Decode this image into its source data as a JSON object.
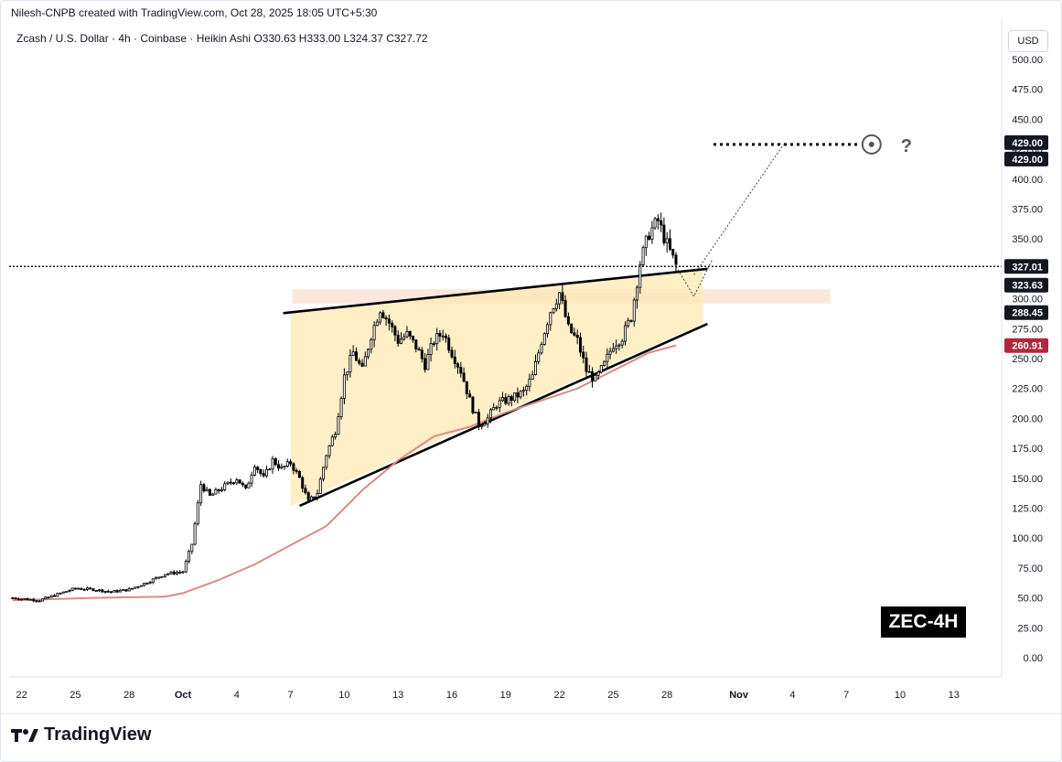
{
  "header": {
    "credit": "Nilesh-CNPB created with TradingView.com, Oct 28, 2025 18:05 UTC+5:30"
  },
  "symbol_line": "Zcash / U.S. Dollar · 4h · Coinbase · Heikin Ashi  O330.63  H333.00  L324.37  C327.72",
  "currency_button": "USD",
  "badge": "ZEC-4H",
  "branding": {
    "name": "TradingView",
    "icon": "tradingview-logo-icon"
  },
  "colors": {
    "candle_up": "#000000",
    "candle_down": "#000000",
    "ma_line": "#d98a87",
    "wedge_fill": "#fde9b4",
    "zone_fill": "#fbd7c6",
    "price_label_dark": "#131722",
    "ma_label": "#b2283b"
  },
  "chart_data": {
    "type": "candlestick",
    "title": "Zcash / U.S. Dollar · 4h · Coinbase · Heikin Ashi",
    "ylim": [
      -20,
      510
    ],
    "y_ticks": [
      0,
      25,
      50,
      75,
      100,
      125,
      150,
      175,
      200,
      225,
      250,
      275,
      300,
      325,
      350,
      375,
      400,
      425,
      450,
      475,
      500
    ],
    "y_tick_labels": [
      "0.00",
      "25.00",
      "50.00",
      "75.00",
      "100.00",
      "125.00",
      "150.00",
      "175.00",
      "200.00",
      "225.00",
      "250.00",
      "275.00",
      "300.00",
      "325.00",
      "350.00",
      "375.00",
      "400.00",
      "425.00",
      "450.00",
      "475.00",
      "500.00"
    ],
    "x_ticks": [
      {
        "date": "2025-09-22",
        "label": "22"
      },
      {
        "date": "2025-09-25",
        "label": "25"
      },
      {
        "date": "2025-09-28",
        "label": "28"
      },
      {
        "date": "2025-10-01",
        "label": "Oct"
      },
      {
        "date": "2025-10-04",
        "label": "4"
      },
      {
        "date": "2025-10-07",
        "label": "7"
      },
      {
        "date": "2025-10-10",
        "label": "10"
      },
      {
        "date": "2025-10-13",
        "label": "13"
      },
      {
        "date": "2025-10-16",
        "label": "16"
      },
      {
        "date": "2025-10-19",
        "label": "19"
      },
      {
        "date": "2025-10-22",
        "label": "22"
      },
      {
        "date": "2025-10-25",
        "label": "25"
      },
      {
        "date": "2025-10-28",
        "label": "28"
      },
      {
        "date": "2025-11-01",
        "label": "Nov"
      },
      {
        "date": "2025-11-04",
        "label": "4"
      },
      {
        "date": "2025-11-07",
        "label": "7"
      },
      {
        "date": "2025-11-10",
        "label": "10"
      },
      {
        "date": "2025-11-13",
        "label": "13"
      }
    ],
    "ohlc_last": {
      "open": 330.63,
      "high": 333.0,
      "low": 324.37,
      "close": 327.72
    },
    "price_path": [
      {
        "date": "2025-09-21T12:00",
        "close": 50
      },
      {
        "date": "2025-09-23",
        "close": 48
      },
      {
        "date": "2025-09-24",
        "close": 53
      },
      {
        "date": "2025-09-25",
        "close": 58
      },
      {
        "date": "2025-09-26",
        "close": 57
      },
      {
        "date": "2025-09-27",
        "close": 55
      },
      {
        "date": "2025-09-28",
        "close": 57
      },
      {
        "date": "2025-09-29",
        "close": 63
      },
      {
        "date": "2025-09-30",
        "close": 70
      },
      {
        "date": "2025-10-01",
        "close": 72
      },
      {
        "date": "2025-10-01T12:00",
        "close": 95
      },
      {
        "date": "2025-10-02",
        "close": 145
      },
      {
        "date": "2025-10-02T12:00",
        "close": 135
      },
      {
        "date": "2025-10-03",
        "close": 140
      },
      {
        "date": "2025-10-04",
        "close": 150
      },
      {
        "date": "2025-10-04T12:00",
        "close": 140
      },
      {
        "date": "2025-10-05",
        "close": 162
      },
      {
        "date": "2025-10-05T12:00",
        "close": 150
      },
      {
        "date": "2025-10-06",
        "close": 165
      },
      {
        "date": "2025-10-06T12:00",
        "close": 158
      },
      {
        "date": "2025-10-07",
        "close": 163
      },
      {
        "date": "2025-10-07T12:00",
        "close": 150
      },
      {
        "date": "2025-10-08",
        "close": 130
      },
      {
        "date": "2025-10-08T12:00",
        "close": 138
      },
      {
        "date": "2025-10-09",
        "close": 170
      },
      {
        "date": "2025-10-09T12:00",
        "close": 190
      },
      {
        "date": "2025-10-10",
        "close": 235
      },
      {
        "date": "2025-10-10T12:00",
        "close": 255
      },
      {
        "date": "2025-10-11",
        "close": 240
      },
      {
        "date": "2025-10-11T12:00",
        "close": 270
      },
      {
        "date": "2025-10-12",
        "close": 292
      },
      {
        "date": "2025-10-12T12:00",
        "close": 280
      },
      {
        "date": "2025-10-13",
        "close": 265
      },
      {
        "date": "2025-10-13T12:00",
        "close": 270
      },
      {
        "date": "2025-10-14",
        "close": 260
      },
      {
        "date": "2025-10-14T12:00",
        "close": 245
      },
      {
        "date": "2025-10-15",
        "close": 265
      },
      {
        "date": "2025-10-15T12:00",
        "close": 272
      },
      {
        "date": "2025-10-16",
        "close": 255
      },
      {
        "date": "2025-10-16T12:00",
        "close": 240
      },
      {
        "date": "2025-10-17",
        "close": 215
      },
      {
        "date": "2025-10-17T12:00",
        "close": 195
      },
      {
        "date": "2025-10-18",
        "close": 200
      },
      {
        "date": "2025-10-18T12:00",
        "close": 212
      },
      {
        "date": "2025-10-19",
        "close": 215
      },
      {
        "date": "2025-10-19T12:00",
        "close": 218
      },
      {
        "date": "2025-10-20",
        "close": 222
      },
      {
        "date": "2025-10-20T12:00",
        "close": 235
      },
      {
        "date": "2025-10-21",
        "close": 265
      },
      {
        "date": "2025-10-21T12:00",
        "close": 290
      },
      {
        "date": "2025-10-22",
        "close": 305
      },
      {
        "date": "2025-10-22T12:00",
        "close": 275
      },
      {
        "date": "2025-10-23",
        "close": 265
      },
      {
        "date": "2025-10-23T12:00",
        "close": 240
      },
      {
        "date": "2025-10-24",
        "close": 232
      },
      {
        "date": "2025-10-24T12:00",
        "close": 245
      },
      {
        "date": "2025-10-25",
        "close": 262
      },
      {
        "date": "2025-10-25T12:00",
        "close": 268
      },
      {
        "date": "2025-10-26",
        "close": 285
      },
      {
        "date": "2025-10-26T12:00",
        "close": 330
      },
      {
        "date": "2025-10-27",
        "close": 355
      },
      {
        "date": "2025-10-27T12:00",
        "close": 365
      },
      {
        "date": "2025-10-28",
        "close": 345
      },
      {
        "date": "2025-10-28T12:00",
        "close": 327.72
      }
    ],
    "moving_average": {
      "color": "#d98a87",
      "points": [
        {
          "date": "2025-09-21T12:00",
          "value": 48
        },
        {
          "date": "2025-09-26",
          "value": 50
        },
        {
          "date": "2025-09-30",
          "value": 51
        },
        {
          "date": "2025-10-01",
          "value": 54
        },
        {
          "date": "2025-10-03",
          "value": 65
        },
        {
          "date": "2025-10-05",
          "value": 78
        },
        {
          "date": "2025-10-07",
          "value": 94
        },
        {
          "date": "2025-10-09",
          "value": 110
        },
        {
          "date": "2025-10-11",
          "value": 140
        },
        {
          "date": "2025-10-13",
          "value": 165
        },
        {
          "date": "2025-10-15",
          "value": 185
        },
        {
          "date": "2025-10-17",
          "value": 193
        },
        {
          "date": "2025-10-19",
          "value": 205
        },
        {
          "date": "2025-10-21",
          "value": 215
        },
        {
          "date": "2025-10-23",
          "value": 225
        },
        {
          "date": "2025-10-25",
          "value": 240
        },
        {
          "date": "2025-10-27",
          "value": 255
        },
        {
          "date": "2025-10-28T12:00",
          "value": 261
        }
      ]
    },
    "wedge": {
      "upper": [
        {
          "date": "2025-10-07",
          "value": 288
        },
        {
          "date": "2025-10-30",
          "value": 325
        }
      ],
      "lower": [
        {
          "date": "2025-10-07",
          "value": 127
        },
        {
          "date": "2025-10-30",
          "value": 279
        }
      ]
    },
    "resistance_zone": {
      "from": "2025-10-07",
      "to": "2025-11-06",
      "low": 296,
      "high": 308
    },
    "projection_path": [
      {
        "date": "2025-10-28T12:00",
        "value": 327
      },
      {
        "date": "2025-10-29T12:00",
        "value": 302
      },
      {
        "date": "2025-10-30T12:00",
        "value": 332
      }
    ],
    "projection_path_alt": [
      {
        "date": "2025-10-29T12:00",
        "value": 320
      },
      {
        "date": "2025-11-03T12:00",
        "value": 429
      }
    ],
    "target_line": {
      "from": "2025-10-31",
      "to": "2025-11-08",
      "value": 429
    },
    "target_marks": [
      "target-icon",
      "question-mark-icon"
    ],
    "target_question": "?",
    "price_labels": [
      {
        "value": 429.0,
        "label": "429.00",
        "style": "dark"
      },
      {
        "value": 429.0,
        "label": "429.00",
        "style": "dark-lower"
      },
      {
        "value": 327.01,
        "label": "327.01",
        "style": "dark"
      },
      {
        "value": 323.63,
        "label": "323.63",
        "style": "dark-lower"
      },
      {
        "value": 288.45,
        "label": "288.45",
        "style": "dark"
      },
      {
        "value": 260.91,
        "label": "260.91",
        "style": "ma"
      }
    ],
    "current_price_line": 327.01,
    "grid": false
  }
}
